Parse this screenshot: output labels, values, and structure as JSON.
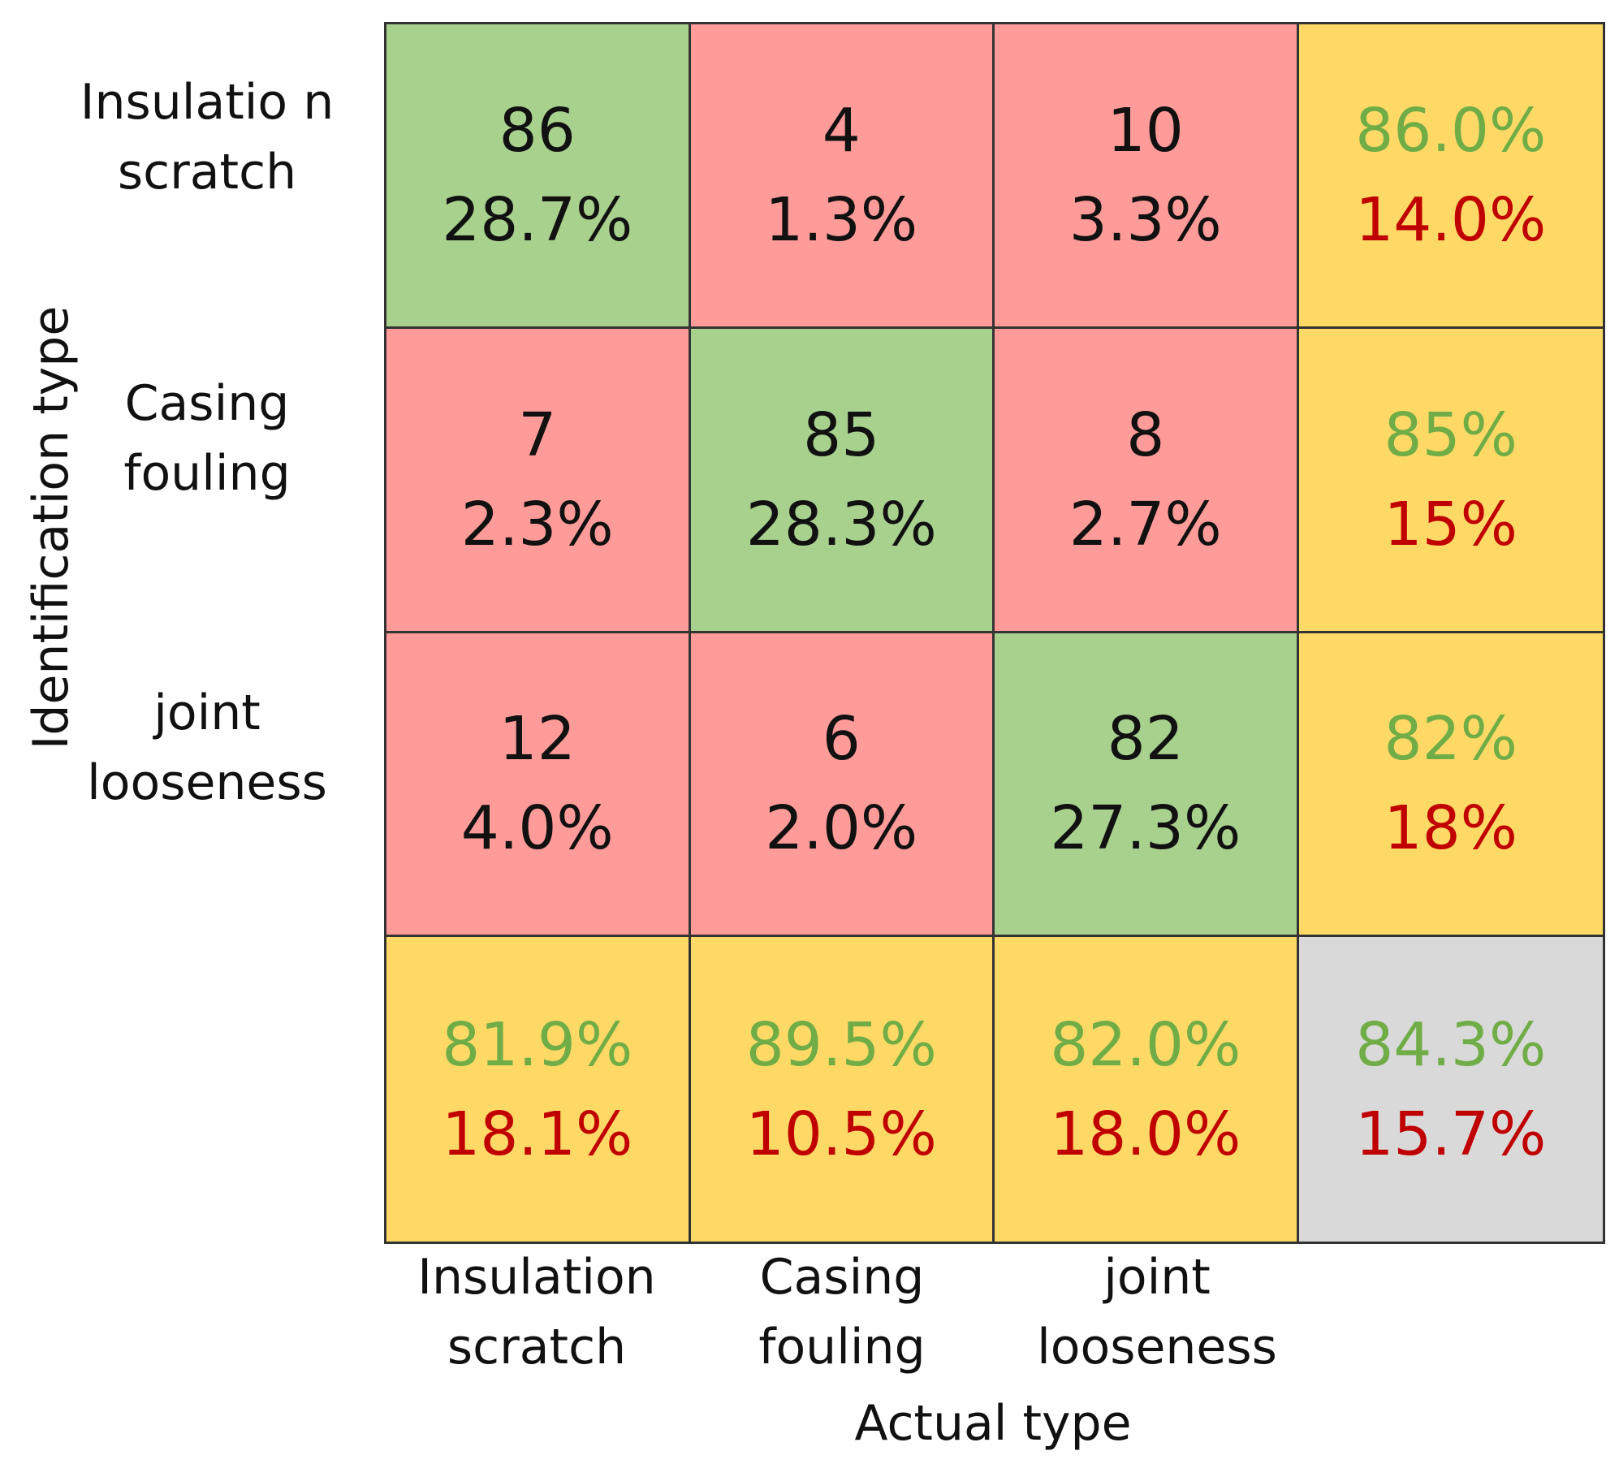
{
  "chart_data": {
    "type": "table",
    "title": "",
    "xlabel": "Actual type",
    "ylabel": "Identification type",
    "row_labels": [
      "Insulatio n scratch",
      "Casing fouling",
      "joint looseness"
    ],
    "col_labels": [
      "Insulation scratch",
      "Casing fouling",
      "joint looseness"
    ],
    "counts": [
      [
        86,
        4,
        10
      ],
      [
        7,
        85,
        8
      ],
      [
        12,
        6,
        82
      ]
    ],
    "percentages": [
      [
        "28.7%",
        "1.3%",
        "3.3%"
      ],
      [
        "2.3%",
        "28.3%",
        "2.7%"
      ],
      [
        "4.0%",
        "2.0%",
        "27.3%"
      ]
    ],
    "row_summary": [
      {
        "correct": "86.0%",
        "error": "14.0%"
      },
      {
        "correct": "85%",
        "error": "15%"
      },
      {
        "correct": "82%",
        "error": "18%"
      }
    ],
    "col_summary": [
      {
        "correct": "81.9%",
        "error": "18.1%"
      },
      {
        "correct": "89.5%",
        "error": "10.5%"
      },
      {
        "correct": "82.0%",
        "error": "18.0%"
      }
    ],
    "overall": {
      "correct": "84.3%",
      "error": "15.7%"
    }
  },
  "colors": {
    "correct_cell": "#a9d18e",
    "error_cell": "#ff9b98",
    "summary_cell": "#ffd966",
    "overall_cell": "#d9d9d9",
    "correct_text": "#70ad47",
    "error_text": "#c00000"
  }
}
